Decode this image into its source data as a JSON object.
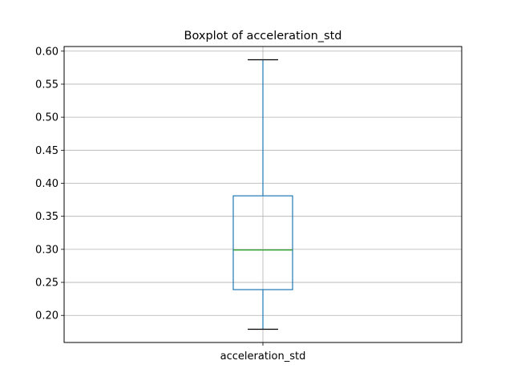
{
  "chart_data": {
    "type": "boxplot",
    "title": "Boxplot of acceleration_std",
    "xlabel": "",
    "ylabel": "",
    "categories": [
      "acceleration_std"
    ],
    "boxes": [
      {
        "name": "acceleration_std",
        "whisker_low": 0.179,
        "q1": 0.239,
        "median": 0.299,
        "q3": 0.381,
        "whisker_high": 0.587
      }
    ],
    "yticks": [
      "0.20",
      "0.25",
      "0.30",
      "0.35",
      "0.40",
      "0.45",
      "0.50",
      "0.55",
      "0.60"
    ],
    "ylim": [
      0.159,
      0.607
    ],
    "grid": true,
    "colors": {
      "box": "#1f77b4",
      "median": "#2ca02c",
      "caps": "#000000",
      "grid": "#b0b0b0"
    }
  }
}
